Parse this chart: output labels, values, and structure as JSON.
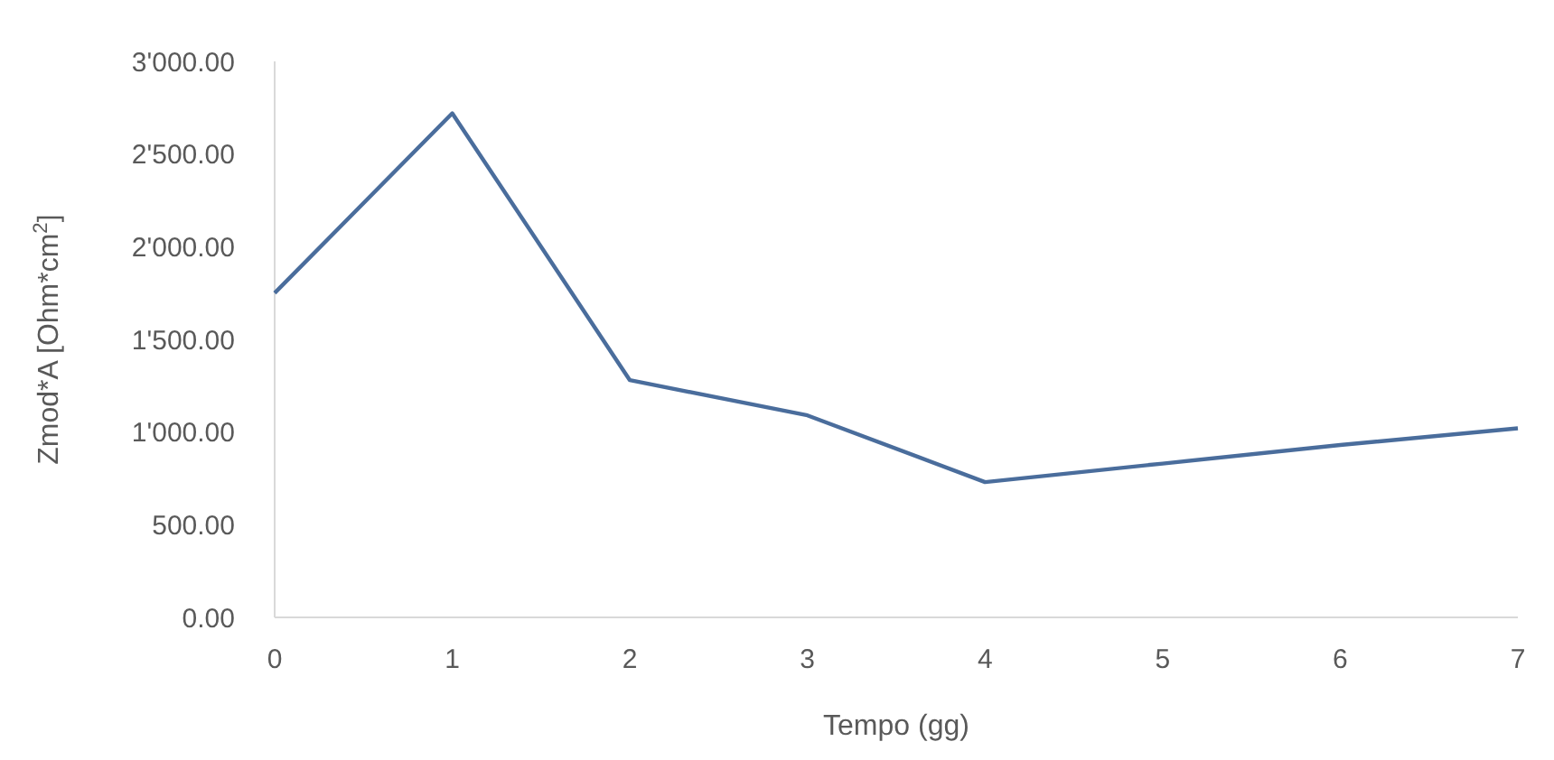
{
  "chart_data": {
    "type": "line",
    "xlabel": "Tempo (gg)",
    "ylabel": "Zmod*A [Ohm*cm$^{2}$]",
    "x": [
      0,
      1,
      2,
      3,
      4,
      5,
      6,
      7
    ],
    "series": [
      {
        "color": "#4a6d9c",
        "values": [
          1750,
          2720,
          1280,
          1090,
          730,
          830,
          930,
          1020
        ]
      }
    ],
    "xlim": [
      0,
      7
    ],
    "xticks": [
      0,
      1,
      2,
      3,
      4,
      5,
      6,
      7
    ],
    "ylim": [
      0,
      3000
    ],
    "yticks": [
      {
        "value": 0,
        "label": "0.00"
      },
      {
        "value": 500,
        "label": "500.00"
      },
      {
        "value": 1000,
        "label": "1'000.00"
      },
      {
        "value": 1500,
        "label": "1'500.00"
      },
      {
        "value": 2000,
        "label": "2'000.00"
      },
      {
        "value": 2500,
        "label": "2'500.00"
      },
      {
        "value": 3000,
        "label": "3'000.00"
      }
    ],
    "grid": false,
    "marker": "none",
    "line_style": "solid"
  }
}
